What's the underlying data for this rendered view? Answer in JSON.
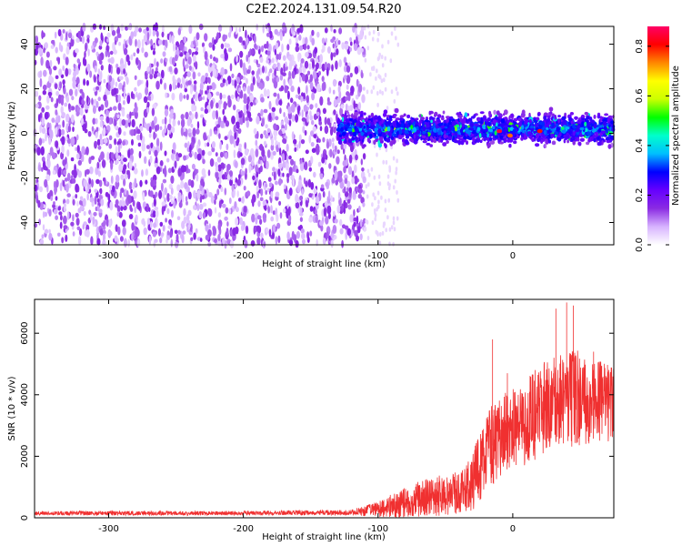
{
  "title": "C2E2.2024.131.09.54.R20",
  "chart_data": [
    {
      "type": "heatmap",
      "xlabel": "Height of straight line (km)",
      "ylabel": "Frequency (Hz)",
      "xlim": [
        -355,
        75
      ],
      "ylim": [
        -50,
        48
      ],
      "xticks": [
        -300,
        -200,
        -100,
        0
      ],
      "yticks": [
        -40,
        -20,
        0,
        20,
        40
      ],
      "noise_region_x": [
        -355,
        -110
      ],
      "signal_band_center_hz": 2,
      "signal_band_halfwidth_hz": 7,
      "signal_start_x": -130,
      "peak_points": [
        {
          "x": -10,
          "y": 1,
          "z": 0.85
        },
        {
          "x": 20,
          "y": 1,
          "z": 0.8
        },
        {
          "x": -2,
          "y": -1,
          "z": 0.75
        }
      ],
      "colorbar": {
        "label": "Normalized spectral amplitude",
        "range": [
          0.0,
          0.88
        ],
        "ticks": [
          0.0,
          0.2,
          0.4,
          0.6,
          0.8
        ],
        "colors": [
          "#ffffff",
          "#d7b3ff",
          "#8a2be2",
          "#6600ff",
          "#0000ff",
          "#00bfff",
          "#00ffcc",
          "#00ff00",
          "#ccff00",
          "#ffff00",
          "#ff8800",
          "#ff0000",
          "#ff0066"
        ]
      }
    },
    {
      "type": "line",
      "xlabel": "Height of straight line (km)",
      "ylabel": "SNR (10 * v/v)",
      "xlim": [
        -355,
        75
      ],
      "ylim": [
        0,
        7100
      ],
      "xticks": [
        -300,
        -200,
        -100,
        0
      ],
      "yticks": [
        0,
        2000,
        4000,
        6000
      ],
      "color": "#f03030",
      "envelope": [
        {
          "x": -355,
          "mean": 150,
          "spread": 70
        },
        {
          "x": -300,
          "mean": 150,
          "spread": 70
        },
        {
          "x": -200,
          "mean": 150,
          "spread": 70
        },
        {
          "x": -120,
          "mean": 170,
          "spread": 90
        },
        {
          "x": -100,
          "mean": 280,
          "spread": 250
        },
        {
          "x": -80,
          "mean": 500,
          "spread": 500
        },
        {
          "x": -60,
          "mean": 700,
          "spread": 650
        },
        {
          "x": -40,
          "mean": 800,
          "spread": 700
        },
        {
          "x": -30,
          "mean": 1200,
          "spread": 1000
        },
        {
          "x": -20,
          "mean": 2000,
          "spread": 1300
        },
        {
          "x": -10,
          "mean": 2700,
          "spread": 1400
        },
        {
          "x": 0,
          "mean": 2900,
          "spread": 1400
        },
        {
          "x": 10,
          "mean": 3000,
          "spread": 1500
        },
        {
          "x": 20,
          "mean": 3500,
          "spread": 1500
        },
        {
          "x": 30,
          "mean": 3800,
          "spread": 1500
        },
        {
          "x": 45,
          "mean": 3900,
          "spread": 1600
        },
        {
          "x": 60,
          "mean": 3800,
          "spread": 1400
        },
        {
          "x": 75,
          "mean": 3700,
          "spread": 1300
        }
      ],
      "spikes": [
        {
          "x": -15,
          "y": 5800
        },
        {
          "x": -4,
          "y": 4700
        },
        {
          "x": 32,
          "y": 6800
        },
        {
          "x": 40,
          "y": 7000
        },
        {
          "x": 45,
          "y": 6900
        },
        {
          "x": 60,
          "y": 5400
        }
      ]
    }
  ]
}
